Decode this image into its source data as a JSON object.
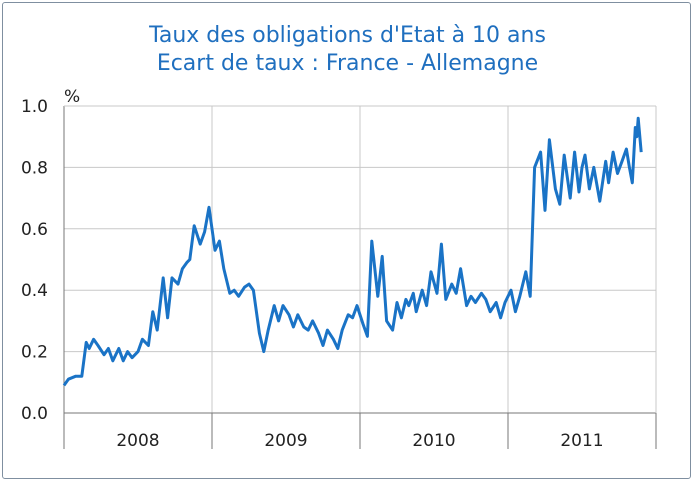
{
  "chart_data": {
    "type": "line",
    "title": "Taux des obligations d'Etat à 10 ans",
    "subtitle": "Ecart de taux : France - Allemagne",
    "ylabel": "%",
    "xlabel": "",
    "ylim": [
      0,
      1.0
    ],
    "yticks": [
      "0.0",
      "0.2",
      "0.4",
      "0.6",
      "0.8",
      "1.0"
    ],
    "xticks": [
      "2008",
      "2009",
      "2010",
      "2011"
    ],
    "xlim": [
      2008.0,
      2012.0
    ],
    "grid": true,
    "color": "#1a73c6",
    "series": [
      {
        "x": [
          2008.0,
          2008.03,
          2008.08,
          2008.12,
          2008.15,
          2008.17,
          2008.2,
          2008.23,
          2008.27,
          2008.3,
          2008.33,
          2008.37,
          2008.4,
          2008.43,
          2008.46,
          2008.5,
          2008.53,
          2008.57,
          2008.6,
          2008.63,
          2008.67,
          2008.7,
          2008.73,
          2008.77,
          2008.8,
          2008.83,
          2008.85,
          2008.88,
          2008.92,
          2008.95,
          2008.98,
          2009.02,
          2009.05,
          2009.08,
          2009.12,
          2009.15,
          2009.18,
          2009.22,
          2009.25,
          2009.28,
          2009.32,
          2009.35,
          2009.38,
          2009.42,
          2009.45,
          2009.48,
          2009.52,
          2009.55,
          2009.58,
          2009.62,
          2009.65,
          2009.68,
          2009.72,
          2009.75,
          2009.78,
          2009.82,
          2009.85,
          2009.88,
          2009.92,
          2009.95,
          2009.98,
          2010.02,
          2010.05,
          2010.08,
          2010.12,
          2010.15,
          2010.18,
          2010.22,
          2010.25,
          2010.28,
          2010.31,
          2010.33,
          2010.36,
          2010.38,
          2010.42,
          2010.45,
          2010.48,
          2010.52,
          2010.55,
          2010.58,
          2010.62,
          2010.65,
          2010.68,
          2010.72,
          2010.75,
          2010.78,
          2010.82,
          2010.85,
          2010.88,
          2010.92,
          2010.95,
          2010.98,
          2011.02,
          2011.05,
          2011.08,
          2011.12,
          2011.15,
          2011.18,
          2011.22,
          2011.25,
          2011.28,
          2011.32,
          2011.35,
          2011.38,
          2011.42,
          2011.45,
          2011.48,
          2011.5,
          2011.52,
          2011.55,
          2011.58,
          2011.62,
          2011.66,
          2011.68,
          2011.71,
          2011.74,
          2011.77,
          2011.8,
          2011.82,
          2011.84,
          2011.86,
          2011.87,
          2011.88,
          2011.9
        ],
        "y": [
          0.09,
          0.11,
          0.12,
          0.12,
          0.23,
          0.21,
          0.24,
          0.22,
          0.19,
          0.21,
          0.17,
          0.21,
          0.17,
          0.2,
          0.18,
          0.2,
          0.24,
          0.22,
          0.33,
          0.27,
          0.44,
          0.31,
          0.44,
          0.42,
          0.47,
          0.49,
          0.5,
          0.61,
          0.55,
          0.59,
          0.67,
          0.53,
          0.56,
          0.47,
          0.39,
          0.4,
          0.38,
          0.41,
          0.42,
          0.4,
          0.26,
          0.2,
          0.27,
          0.35,
          0.3,
          0.35,
          0.32,
          0.28,
          0.32,
          0.28,
          0.27,
          0.3,
          0.26,
          0.22,
          0.27,
          0.24,
          0.21,
          0.27,
          0.32,
          0.31,
          0.35,
          0.29,
          0.25,
          0.56,
          0.38,
          0.51,
          0.3,
          0.27,
          0.36,
          0.31,
          0.37,
          0.35,
          0.39,
          0.33,
          0.4,
          0.35,
          0.46,
          0.39,
          0.55,
          0.37,
          0.42,
          0.39,
          0.47,
          0.35,
          0.38,
          0.36,
          0.39,
          0.37,
          0.33,
          0.36,
          0.31,
          0.36,
          0.4,
          0.33,
          0.38,
          0.46,
          0.38,
          0.8,
          0.85,
          0.66,
          0.89,
          0.73,
          0.68,
          0.84,
          0.7,
          0.85,
          0.72,
          0.8,
          0.84,
          0.73,
          0.8,
          0.69,
          0.82,
          0.75,
          0.85,
          0.78,
          0.82,
          0.86,
          0.8,
          0.75,
          0.93,
          0.9,
          0.96,
          0.85
        ]
      }
    ]
  }
}
